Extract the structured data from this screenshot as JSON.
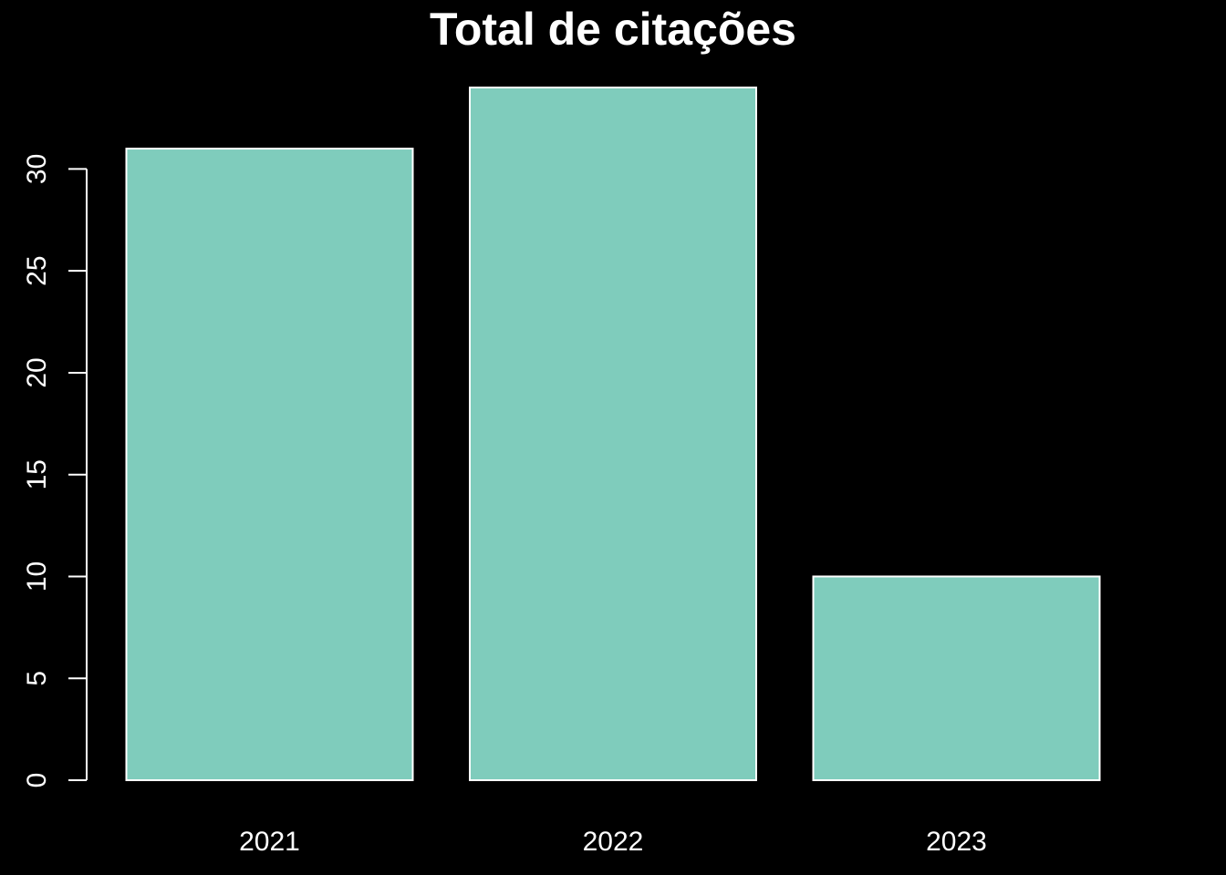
{
  "colors": {
    "background": "#000000",
    "foreground": "#ffffff",
    "bar_fill": "#7fccbc",
    "bar_stroke": "#ffffff"
  },
  "chart_data": {
    "type": "bar",
    "title": "Total de citações",
    "xlabel": "",
    "ylabel": "",
    "categories": [
      "2021",
      "2022",
      "2023"
    ],
    "values": [
      31,
      34,
      10
    ],
    "ylim": [
      0,
      34
    ],
    "yticks": [
      0,
      5,
      10,
      15,
      20,
      25,
      30
    ],
    "grid": false,
    "legend": "none"
  }
}
